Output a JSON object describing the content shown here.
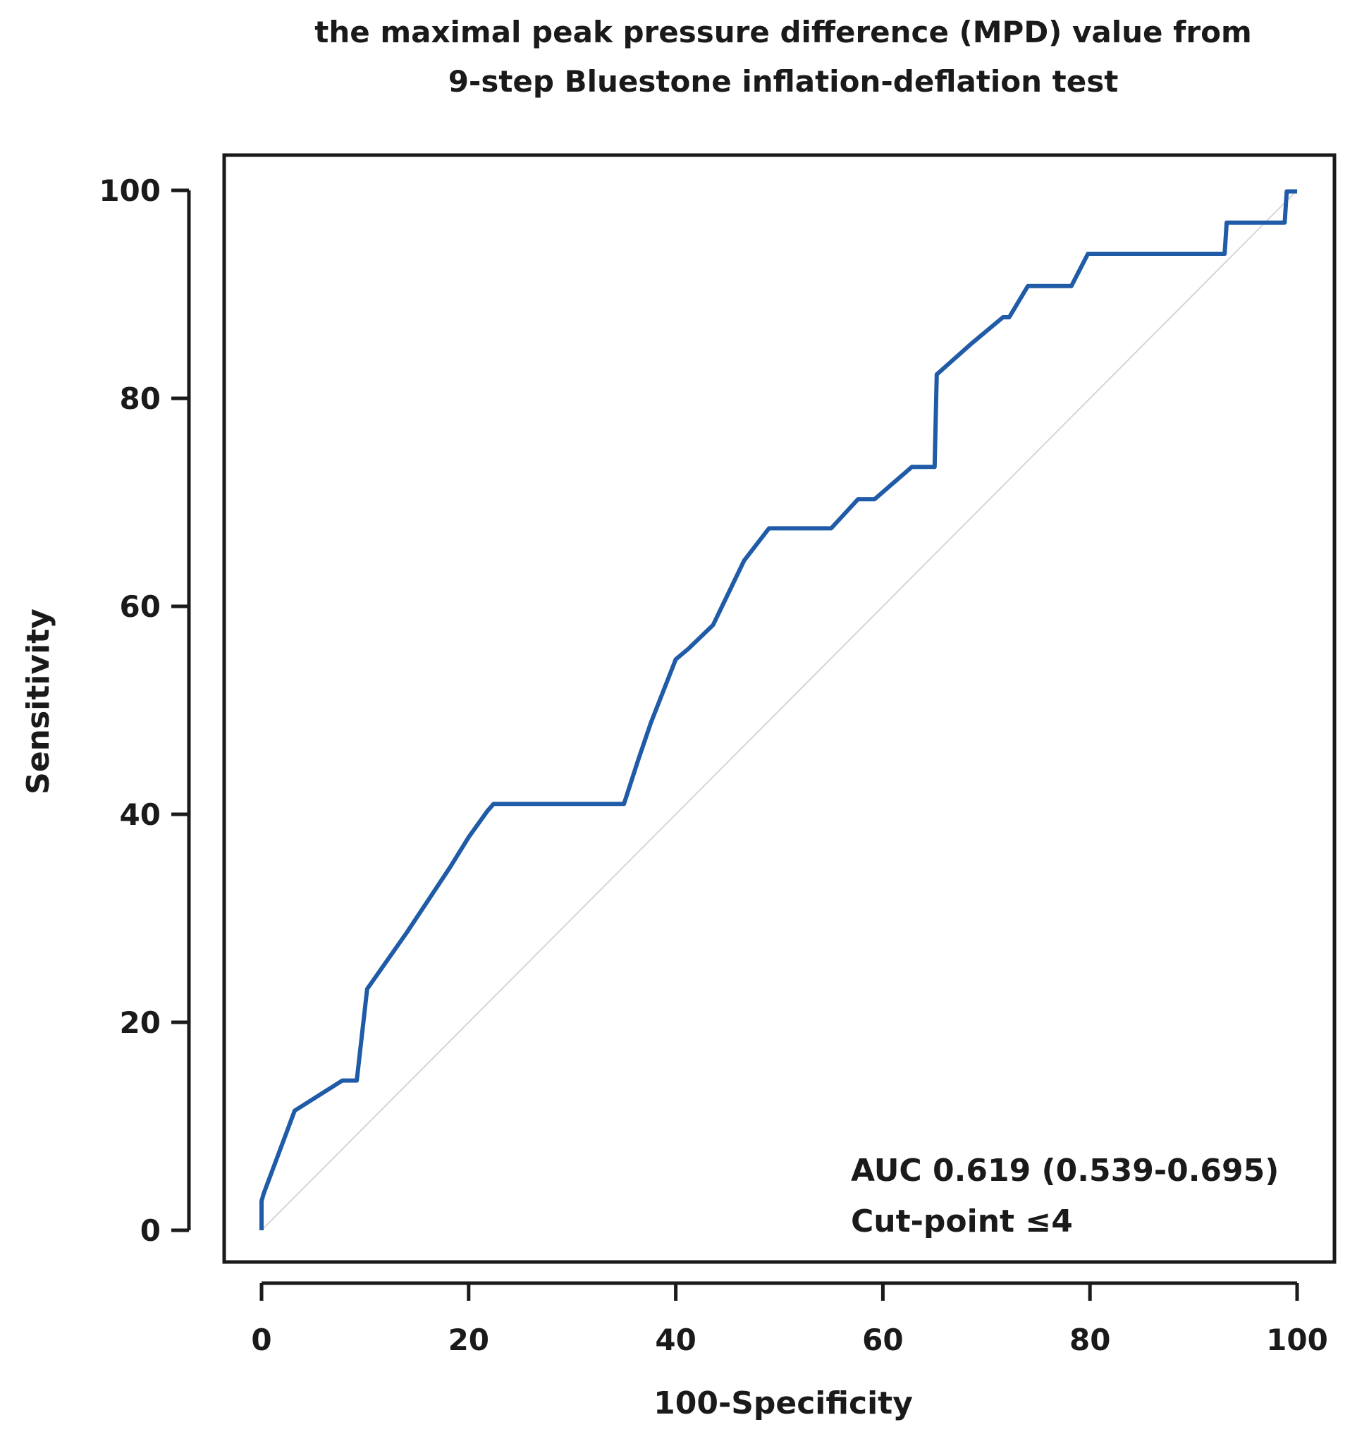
{
  "chart_data": {
    "type": "line",
    "title_lines": [
      "the maximal peak pressure difference (MPD) value from",
      "9-step Bluestone inflation-deflation test"
    ],
    "xlabel": "100-Specificity",
    "ylabel": "Sensitivity",
    "xlim": [
      0,
      100
    ],
    "ylim": [
      0,
      100
    ],
    "x_ticks": [
      0,
      20,
      40,
      60,
      80,
      100
    ],
    "y_ticks": [
      0,
      20,
      40,
      60,
      80,
      100
    ],
    "x_tick_labels": [
      "0",
      "20",
      "40",
      "60",
      "80",
      "100"
    ],
    "y_tick_labels": [
      "0",
      "20",
      "40",
      "60",
      "80",
      "100"
    ],
    "annotations": [
      "AUC 0.619 (0.539-0.695)",
      "Cut-point ≤4"
    ],
    "colors": {
      "roc": "#1f5ba6",
      "reference": "#d6d6d6",
      "frame": "#1a1a1a"
    },
    "series": [
      {
        "name": "ROC curve",
        "x": [
          0,
          0,
          0.2,
          3.2,
          7.8,
          9.2,
          10.2,
          14.0,
          18.2,
          20.0,
          21.8,
          22.4,
          35.0,
          36.4,
          37.6,
          40.0,
          41.2,
          43.6,
          46.6,
          49.0,
          55.0,
          57.6,
          59.2,
          62.8,
          63.6,
          65.0,
          65.2,
          68.6,
          71.6,
          72.2,
          74.0,
          78.2,
          79.8,
          93.0,
          93.2,
          98.8,
          99.0,
          100
        ],
        "y": [
          0,
          2.8,
          3.5,
          11.5,
          14.4,
          14.4,
          23.2,
          28.6,
          34.9,
          37.8,
          40.3,
          41.0,
          41.0,
          45.3,
          48.8,
          54.9,
          55.9,
          58.2,
          64.4,
          67.5,
          67.5,
          70.3,
          70.3,
          73.4,
          73.4,
          73.4,
          82.3,
          85.3,
          87.8,
          87.8,
          90.8,
          90.8,
          93.9,
          93.9,
          96.9,
          96.9,
          99.9,
          99.9
        ]
      },
      {
        "name": "Reference line",
        "x": [
          0,
          100
        ],
        "y": [
          0,
          100
        ]
      }
    ]
  }
}
